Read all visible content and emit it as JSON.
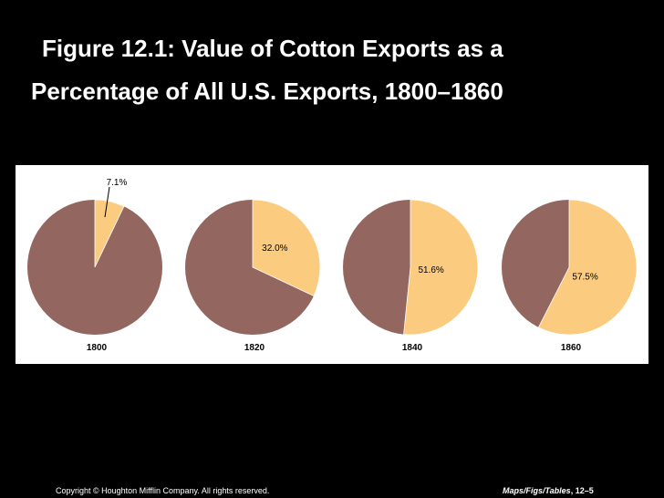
{
  "title": {
    "line1": "Figure 12.1: Value of Cotton Exports as a",
    "line2": "Percentage of All U.S. Exports, 1800–1860"
  },
  "footer": {
    "copyright": "Copyright © Houghton Mifflin Company. All rights reserved.",
    "source_em": "Maps/Figs/Tables",
    "source_page": ", 12–5"
  },
  "colors": {
    "cotton": "#fbcc7f",
    "other": "#93675f",
    "background": "#000000",
    "panel": "#ffffff"
  },
  "chart_data": {
    "type": "pie",
    "title": "Figure 12.1: Value of Cotton Exports as a Percentage of All U.S. Exports, 1800–1860",
    "charts": [
      {
        "year": "1800",
        "cotton_percent": 7.1,
        "label": "7.1%"
      },
      {
        "year": "1820",
        "cotton_percent": 32.0,
        "label": "32.0%"
      },
      {
        "year": "1840",
        "cotton_percent": 51.6,
        "label": "51.6%"
      },
      {
        "year": "1860",
        "cotton_percent": 57.5,
        "label": "57.5%"
      }
    ]
  }
}
